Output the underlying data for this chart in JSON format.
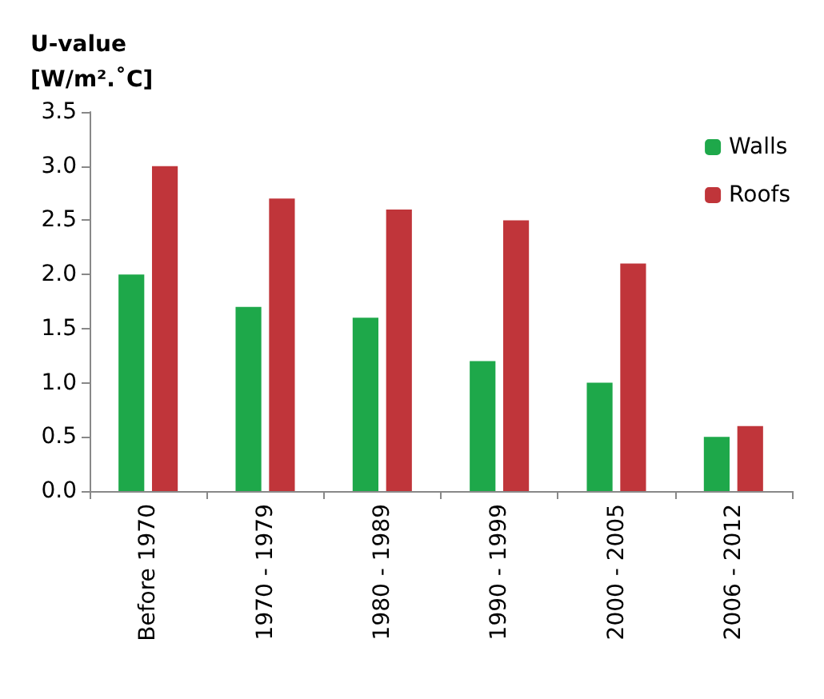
{
  "chart_data": {
    "type": "bar",
    "ylabel": "U-value\n[W/m².˚C]",
    "categories": [
      "Before 1970",
      "1970 - 1979",
      "1980 - 1989",
      "1990 - 1999",
      "2000 - 2005",
      "2006 - 2012"
    ],
    "series": [
      {
        "name": "Walls",
        "color": "#1ea84a",
        "values": [
          2.0,
          1.7,
          1.6,
          1.2,
          1.0,
          0.5
        ]
      },
      {
        "name": "Roofs",
        "color": "#c0353a",
        "values": [
          3.0,
          2.7,
          2.6,
          2.5,
          2.1,
          0.6
        ]
      }
    ],
    "ylim": [
      0,
      3.5
    ],
    "yticks": [
      {
        "value": 0,
        "label": "0.0"
      },
      {
        "value": 0.5,
        "label": "0.5"
      },
      {
        "value": 1,
        "label": "1.0"
      },
      {
        "value": 1.5,
        "label": "1.5"
      },
      {
        "value": 2,
        "label": "2.0"
      },
      {
        "value": 2.5,
        "label": "2.5"
      },
      {
        "value": 3,
        "label": "3.0"
      },
      {
        "value": 3.5,
        "label": "3.5"
      }
    ],
    "grid": false,
    "legend": "top right"
  }
}
